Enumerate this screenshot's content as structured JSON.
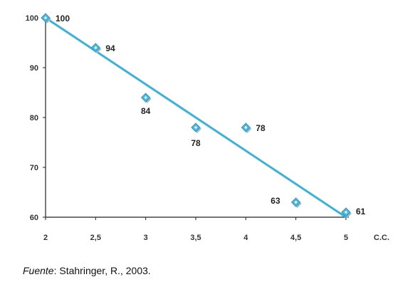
{
  "chart_data": {
    "type": "scatter",
    "x": [
      2,
      2.5,
      3,
      3.5,
      4,
      4.5,
      5
    ],
    "y": [
      100,
      94,
      84,
      78,
      78,
      63,
      61
    ],
    "point_labels": [
      "100",
      "94",
      "84",
      "78",
      "78",
      "63",
      "61"
    ],
    "x_tick_labels": [
      "2",
      "2,5",
      "3",
      "3,5",
      "4",
      "4,5",
      "5"
    ],
    "y_tick_labels": [
      "60",
      "70",
      "80",
      "90",
      "100"
    ],
    "y_ticks": [
      60,
      70,
      80,
      90,
      100
    ],
    "xlabel": "C.C.",
    "ylabel": "",
    "xlim": [
      2,
      5
    ],
    "ylim": [
      60,
      100
    ],
    "trendline": {
      "x": [
        2,
        5
      ],
      "y": [
        100,
        60
      ]
    },
    "grid": false,
    "colors": {
      "line": "#3cb2d8",
      "marker": "#4fb8dc",
      "marker_shadow": "#b5b5b5",
      "axis": "#222222"
    }
  },
  "caption": {
    "source_label": "Fuente",
    "source_text": ": Stahringer, R., 2003."
  }
}
